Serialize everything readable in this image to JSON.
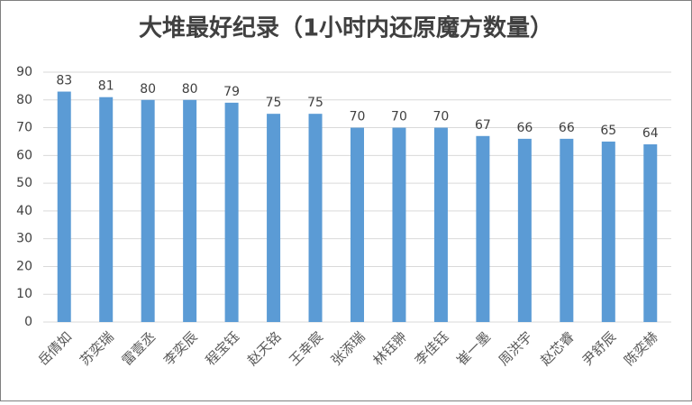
{
  "chart_data": {
    "type": "bar",
    "title": "大堆最好纪录（1小时内还原魔方数量）",
    "categories": [
      "岳倩如",
      "苏奕瑞",
      "雷壹丞",
      "李奕辰",
      "程宝钰",
      "赵天铭",
      "王幸宸",
      "张添瑞",
      "林钰翀",
      "李佳钰",
      "崔一墨",
      "周洪宇",
      "赵芯睿",
      "尹舒辰",
      "陈奕赫"
    ],
    "values": [
      83,
      81,
      80,
      80,
      79,
      75,
      75,
      70,
      70,
      70,
      67,
      66,
      66,
      65,
      64
    ],
    "color": "#5b9bd5",
    "ylim": [
      0,
      90
    ],
    "yticks": [
      0,
      10,
      20,
      30,
      40,
      50,
      60,
      70,
      80,
      90
    ],
    "grid": true
  }
}
